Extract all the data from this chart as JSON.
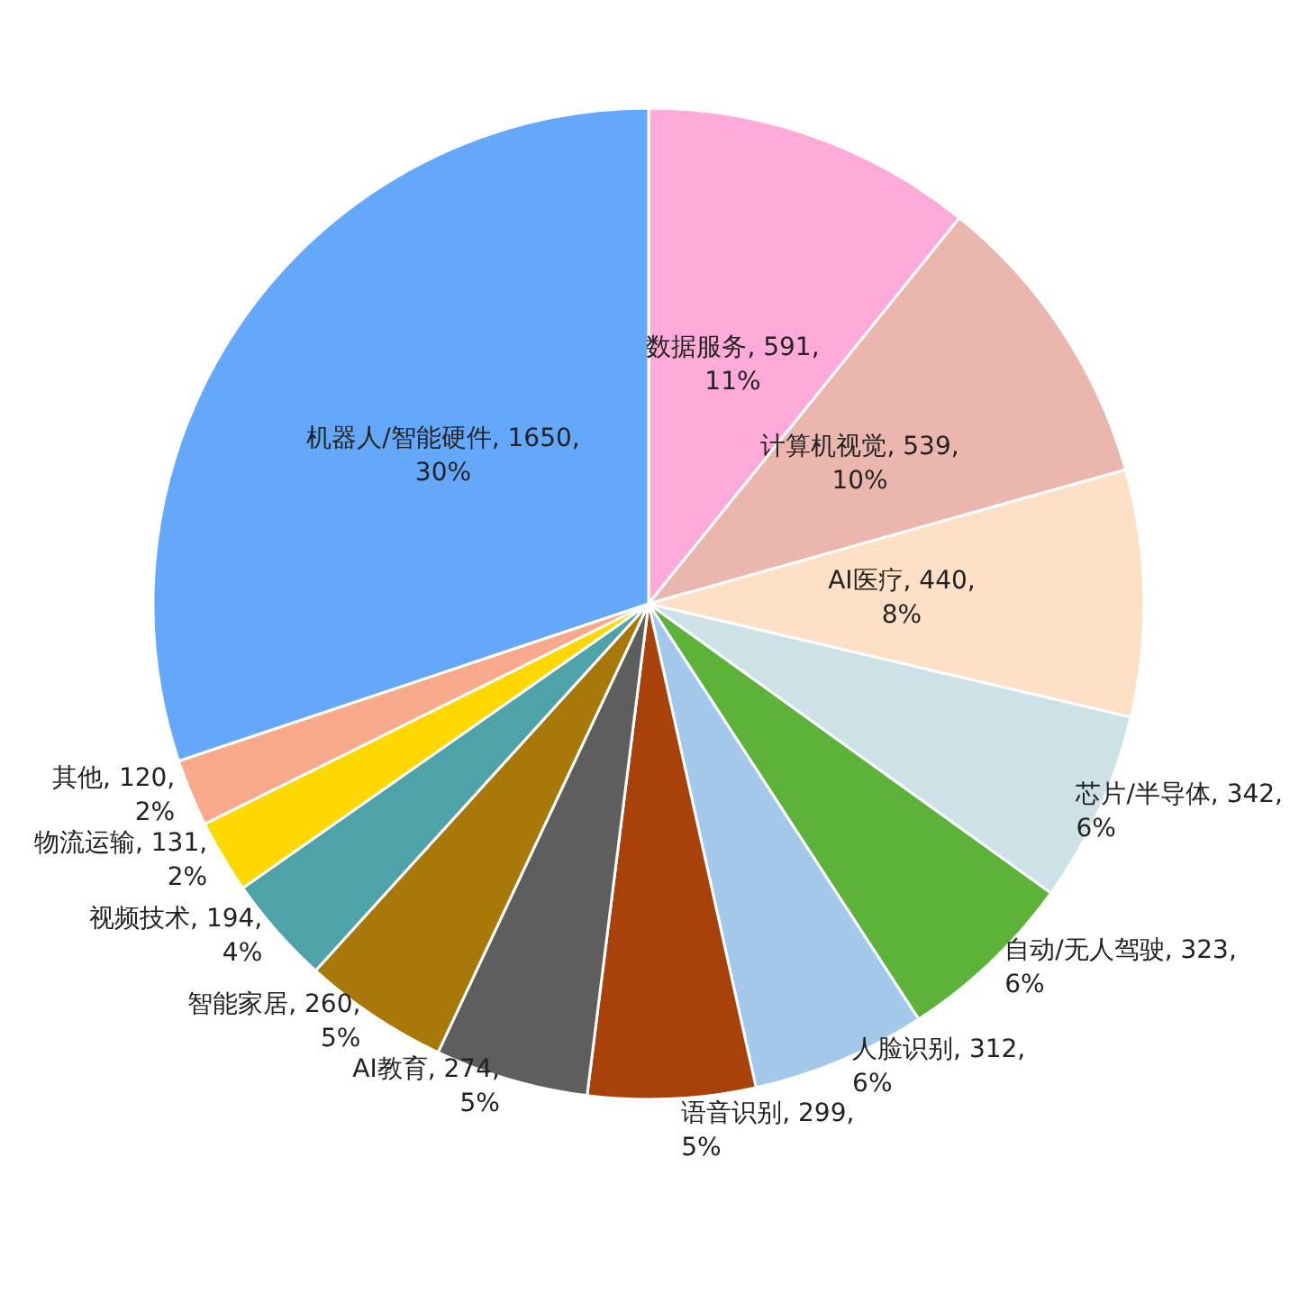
{
  "chart_data": {
    "type": "pie",
    "categories": [
      "数据服务",
      "计算机视觉",
      "AI医疗",
      "芯片/半导体",
      "自动/无人驾驶",
      "人脸识别",
      "语音识别",
      "AI教育",
      "智能家居",
      "视频技术",
      "物流运输",
      "其他",
      "机器人/智能硬件"
    ],
    "values": [
      591,
      539,
      440,
      342,
      323,
      312,
      299,
      274,
      260,
      194,
      131,
      120,
      1650
    ],
    "value_labels": [
      "591, 11%",
      "539, 10%",
      "440, 8%",
      "342, 6%",
      "323, 6%",
      "312, 6%",
      "299, 5%",
      "274, 5%",
      "260, 5%",
      "194, 4%",
      "131, 2%",
      "120, 2%",
      "1650, 30%"
    ],
    "colors": [
      "#ffaad8",
      "#eab6ae",
      "#fde0c6",
      "#cde2e6",
      "#5db33a",
      "#a3c8ea",
      "#a9420a",
      "#5e5e5e",
      "#a87808",
      "#4ea3a8",
      "#ffd800",
      "#f9a98c",
      "#64a8fb"
    ],
    "legend": false
  }
}
